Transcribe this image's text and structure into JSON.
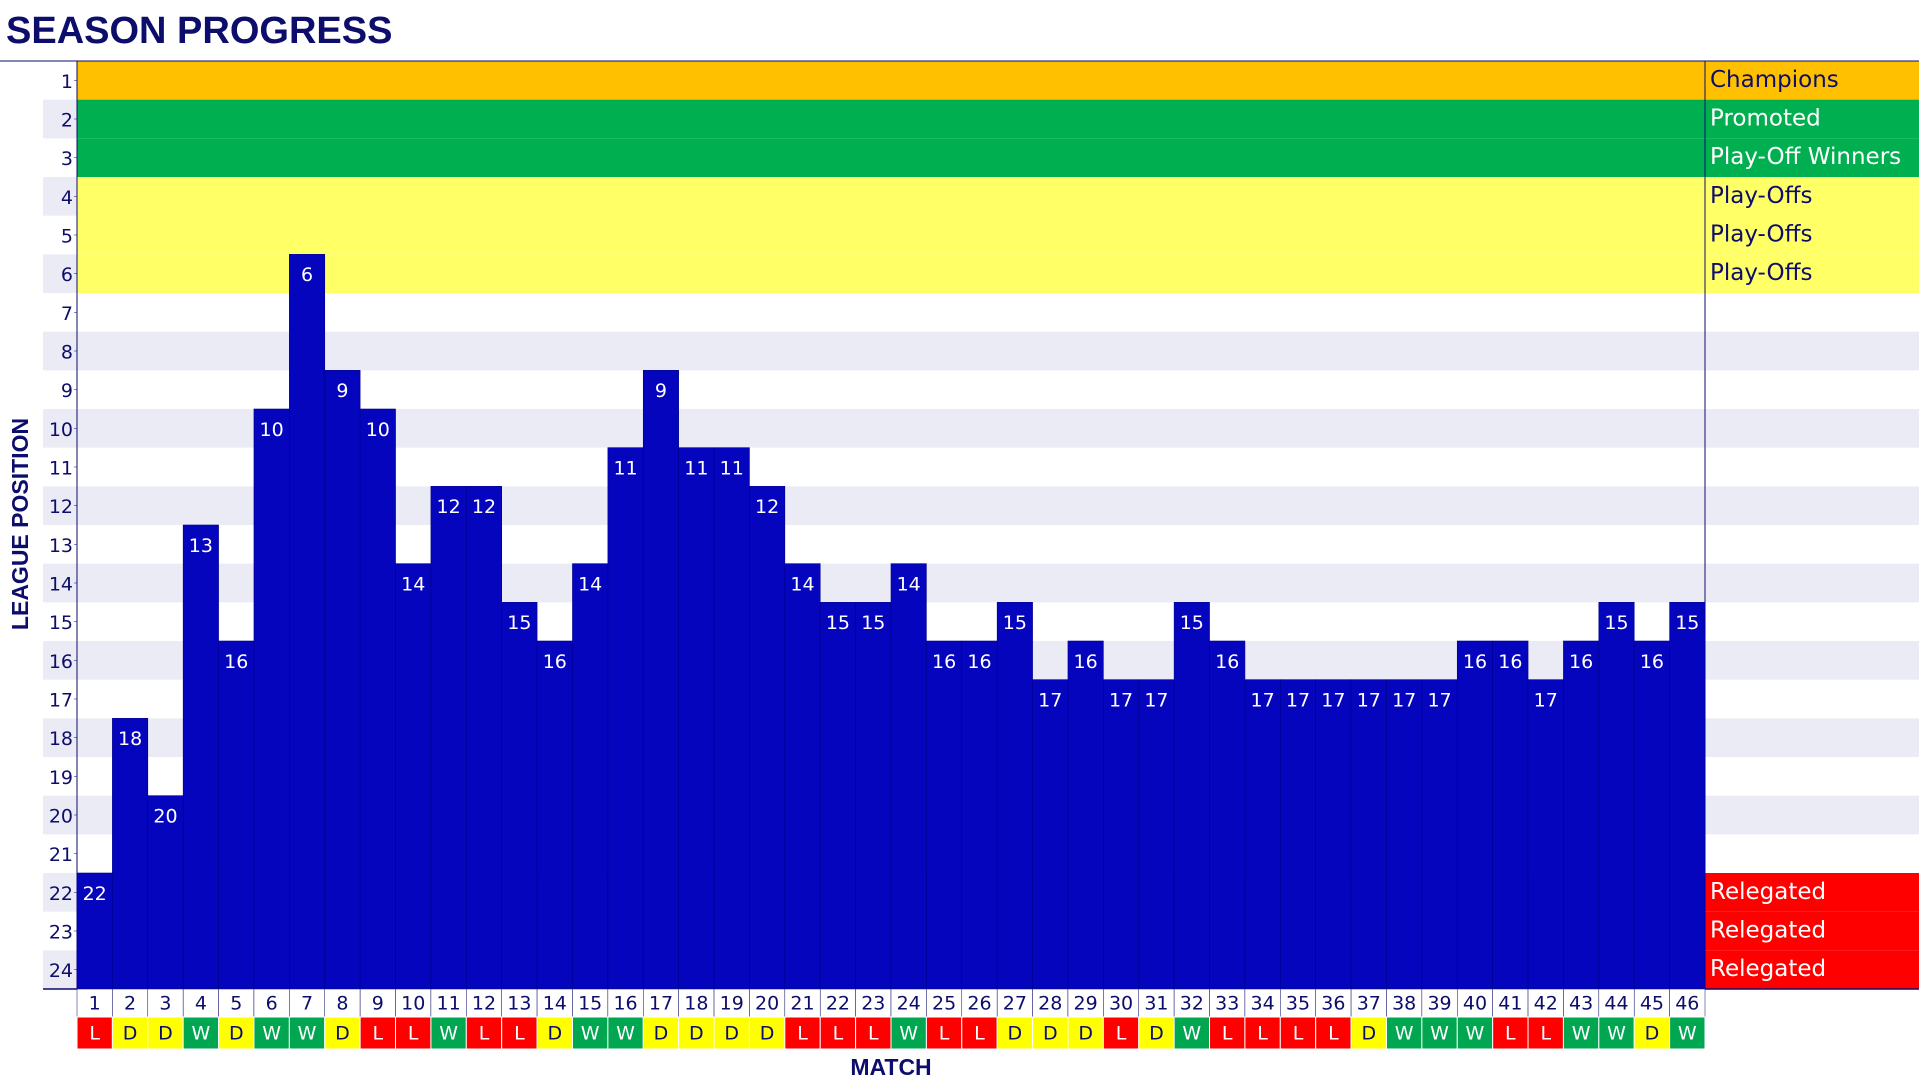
{
  "chart_data": {
    "type": "step-bar",
    "title": "SEASON PROGRESS",
    "y_label": "LEAGUE POSITION",
    "x_label": "MATCH",
    "ylim": [
      1,
      24
    ],
    "yticks": [
      1,
      2,
      3,
      4,
      5,
      6,
      7,
      8,
      9,
      10,
      11,
      12,
      13,
      14,
      15,
      16,
      17,
      18,
      19,
      20,
      21,
      22,
      23,
      24
    ],
    "inverted": true,
    "color": "#0505be",
    "categories": [
      1,
      2,
      3,
      4,
      5,
      6,
      7,
      8,
      9,
      10,
      11,
      12,
      13,
      14,
      15,
      16,
      17,
      18,
      19,
      20,
      21,
      22,
      23,
      24,
      25,
      26,
      27,
      28,
      29,
      30,
      31,
      32,
      33,
      34,
      35,
      36,
      37,
      38,
      39,
      40,
      41,
      42,
      43,
      44,
      45,
      46
    ],
    "values": [
      22,
      18,
      20,
      13,
      16,
      10,
      6,
      9,
      10,
      14,
      12,
      12,
      15,
      16,
      14,
      11,
      9,
      11,
      11,
      12,
      14,
      15,
      15,
      14,
      16,
      16,
      15,
      17,
      16,
      17,
      17,
      15,
      16,
      17,
      17,
      17,
      17,
      17,
      17,
      16,
      16,
      17,
      16,
      15,
      16,
      15
    ],
    "results": [
      "L",
      "D",
      "D",
      "W",
      "D",
      "W",
      "W",
      "D",
      "L",
      "L",
      "W",
      "L",
      "L",
      "D",
      "W",
      "W",
      "D",
      "D",
      "D",
      "D",
      "L",
      "L",
      "L",
      "W",
      "L",
      "L",
      "D",
      "D",
      "D",
      "L",
      "D",
      "W",
      "L",
      "L",
      "L",
      "L",
      "D",
      "W",
      "W",
      "W",
      "L",
      "L",
      "W",
      "W",
      "D",
      "W"
    ],
    "result_colors": {
      "W": {
        "fill": "#00a650",
        "text": "#ffffff"
      },
      "D": {
        "fill": "#ffff00",
        "text": "#0d0d6b"
      },
      "L": {
        "fill": "#ff0000",
        "text": "#ffffff"
      }
    },
    "zones": [
      {
        "position": 1,
        "label": "Champions",
        "color": "#ffc000",
        "text": "#0d0d6b"
      },
      {
        "position": 2,
        "label": "Promoted",
        "color": "#00b050",
        "text": "#ffffff"
      },
      {
        "position": 3,
        "label": "Play-Off Winners",
        "color": "#00b050",
        "text": "#ffffff"
      },
      {
        "position": 4,
        "label": "Play-Offs",
        "color": "#ffff66",
        "text": "#0d0d6b"
      },
      {
        "position": 5,
        "label": "Play-Offs",
        "color": "#ffff66",
        "text": "#0d0d6b"
      },
      {
        "position": 6,
        "label": "Play-Offs",
        "color": "#ffff66",
        "text": "#0d0d6b"
      },
      {
        "position": 22,
        "label": "Relegated",
        "color": "#ff0000",
        "text": "#ffffff"
      },
      {
        "position": 23,
        "label": "Relegated",
        "color": "#ff0000",
        "text": "#ffffff"
      },
      {
        "position": 24,
        "label": "Relegated",
        "color": "#ff0000",
        "text": "#ffffff"
      }
    ]
  }
}
